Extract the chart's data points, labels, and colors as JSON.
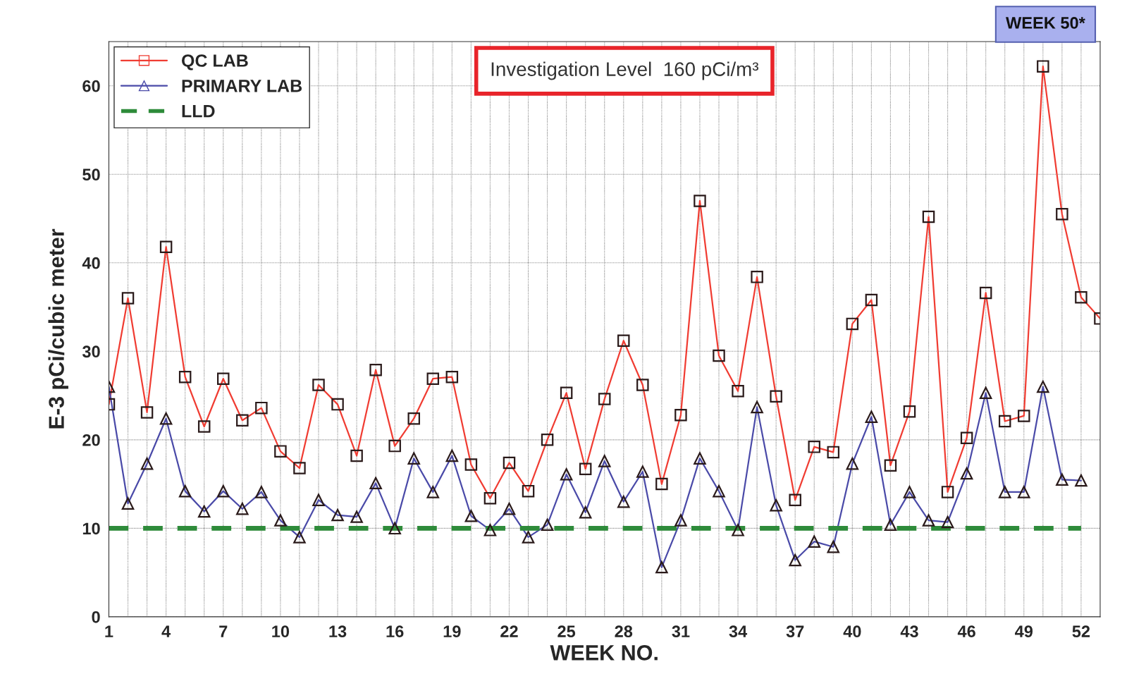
{
  "chart_data": {
    "type": "line",
    "xlabel": "WEEK NO.",
    "ylabel": "E-3 pCi/cubic meter",
    "annotations": [
      "Investigation Level  160 pCi/m³",
      "WEEK 50*"
    ],
    "x": [
      1,
      2,
      3,
      4,
      5,
      6,
      7,
      8,
      9,
      10,
      11,
      12,
      13,
      14,
      15,
      16,
      17,
      18,
      19,
      20,
      21,
      22,
      23,
      24,
      25,
      26,
      27,
      28,
      29,
      30,
      31,
      32,
      33,
      34,
      35,
      36,
      37,
      38,
      39,
      40,
      41,
      42,
      43,
      44,
      45,
      46,
      47,
      48,
      49,
      50,
      51,
      52,
      53
    ],
    "series": [
      {
        "name": "QC LAB",
        "color": "#f03c32",
        "marker": "square",
        "values": [
          24.0,
          36.0,
          23.1,
          41.8,
          27.1,
          21.5,
          26.9,
          22.2,
          23.6,
          18.7,
          16.8,
          26.2,
          24.0,
          18.2,
          27.9,
          19.3,
          22.4,
          26.9,
          27.1,
          17.2,
          13.4,
          17.4,
          14.2,
          20.0,
          25.3,
          16.7,
          24.6,
          31.2,
          26.2,
          15.0,
          22.8,
          47.0,
          29.5,
          25.5,
          38.4,
          24.9,
          13.2,
          19.2,
          18.6,
          33.1,
          35.8,
          17.1,
          23.2,
          45.2,
          14.1,
          20.2,
          36.6,
          22.1,
          22.7,
          62.2,
          45.5,
          36.1,
          33.7
        ]
      },
      {
        "name": "PRIMARY LAB",
        "color": "#4a4aa8",
        "marker": "triangle",
        "values": [
          26.0,
          12.8,
          17.3,
          22.4,
          14.2,
          11.9,
          14.2,
          12.2,
          14.1,
          10.9,
          9.0,
          13.2,
          11.5,
          11.3,
          15.1,
          10.0,
          17.9,
          14.1,
          18.2,
          11.4,
          9.8,
          12.2,
          9.0,
          10.4,
          16.1,
          11.8,
          17.6,
          13.0,
          16.4,
          5.6,
          10.9,
          17.9,
          14.2,
          9.8,
          23.7,
          12.6,
          6.4,
          8.5,
          7.9,
          17.3,
          22.6,
          10.4,
          14.1,
          10.9,
          10.7,
          16.2,
          25.3,
          14.1,
          14.1,
          26.0,
          15.5,
          15.4,
          null
        ]
      },
      {
        "name": "LLD",
        "color": "#2e8b3a",
        "marker": "none",
        "line_style": "dashed",
        "values": [
          10,
          10,
          10,
          10,
          10,
          10,
          10,
          10,
          10,
          10,
          10,
          10,
          10,
          10,
          10,
          10,
          10,
          10,
          10,
          10,
          10,
          10,
          10,
          10,
          10,
          10,
          10,
          10,
          10,
          10,
          10,
          10,
          10,
          10,
          10,
          10,
          10,
          10,
          10,
          10,
          10,
          10,
          10,
          10,
          10,
          10,
          10,
          10,
          10,
          10,
          10,
          10,
          null
        ]
      }
    ],
    "xlim": [
      1,
      53
    ],
    "xticks": [
      1,
      {
        "value": 2,
        "label": null
      },
      {
        "value": 3,
        "label": null
      },
      4,
      {
        "value": 5,
        "label": null
      },
      {
        "value": 6,
        "label": null
      },
      7,
      {
        "value": 8,
        "label": null
      },
      {
        "value": 9,
        "label": null
      },
      10,
      {
        "value": 11,
        "label": null
      },
      {
        "value": 12,
        "label": null
      },
      13,
      {
        "value": 14,
        "label": null
      },
      {
        "value": 15,
        "label": null
      },
      16,
      {
        "value": 17,
        "label": null
      },
      {
        "value": 18,
        "label": null
      },
      19,
      {
        "value": 20,
        "label": null
      },
      {
        "value": 21,
        "label": null
      },
      22,
      {
        "value": 23,
        "label": null
      },
      {
        "value": 24,
        "label": null
      },
      25,
      {
        "value": 26,
        "label": null
      },
      {
        "value": 27,
        "label": null
      },
      28,
      {
        "value": 29,
        "label": null
      },
      {
        "value": 30,
        "label": null
      },
      31,
      {
        "value": 32,
        "label": null
      },
      {
        "value": 33,
        "label": null
      },
      34,
      {
        "value": 35,
        "label": null
      },
      {
        "value": 36,
        "label": null
      },
      37,
      {
        "value": 38,
        "label": null
      },
      {
        "value": 39,
        "label": null
      },
      40,
      {
        "value": 41,
        "label": null
      },
      {
        "value": 42,
        "label": null
      },
      43,
      {
        "value": 44,
        "label": null
      },
      {
        "value": 45,
        "label": null
      },
      46,
      {
        "value": 47,
        "label": null
      },
      {
        "value": 48,
        "label": null
      },
      49,
      {
        "value": 50,
        "label": null
      },
      {
        "value": 51,
        "label": null
      },
      52
    ],
    "ylim": [
      0,
      65
    ],
    "yticks": [
      0,
      10,
      20,
      30,
      40,
      50,
      60
    ],
    "grid": true,
    "legend": "top left"
  }
}
